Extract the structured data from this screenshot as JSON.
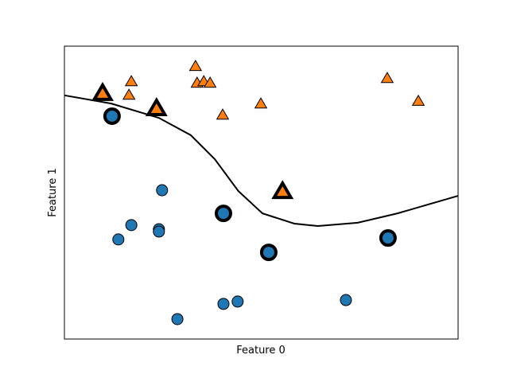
{
  "chart_data": {
    "type": "scatter",
    "xlabel": "Feature 0",
    "ylabel": "Feature 1",
    "xlim": [
      0,
      100
    ],
    "ylim": [
      0,
      100
    ],
    "series": [
      {
        "marker": "circle",
        "color": "#1f77b4",
        "support": false,
        "x": [
          24.8,
          17.0,
          13.7,
          24.0,
          24.0,
          28.7,
          40.4,
          44.0,
          71.5
        ],
        "values": [
          50.8,
          38.9,
          34.0,
          37.5,
          36.7,
          6.8,
          12.0,
          12.8,
          13.3
        ]
      },
      {
        "marker": "triangle",
        "color": "#ff7f0e",
        "support": false,
        "x": [
          33.3,
          17.0,
          33.7,
          35.4,
          37.0,
          16.4,
          40.2,
          49.9,
          82.0,
          89.9
        ],
        "values": [
          93.2,
          88.0,
          87.5,
          88.0,
          87.5,
          83.4,
          76.6,
          80.4,
          89.1,
          81.3
        ]
      },
      {
        "marker": "circle",
        "color": "#1f77b4",
        "support": true,
        "x": [
          12.1,
          40.4,
          51.9,
          82.2
        ],
        "values": [
          76.1,
          42.9,
          29.6,
          34.5
        ]
      },
      {
        "marker": "triangle",
        "color": "#ff7f0e",
        "support": true,
        "x": [
          9.7,
          23.4,
          55.4
        ],
        "values": [
          84.0,
          78.8,
          50.5
        ]
      }
    ],
    "boundary": {
      "color": "#000000",
      "x": [
        0,
        11.9,
        24.0,
        32.1,
        38.2,
        44.2,
        50.3,
        58.4,
        64.4,
        74.5,
        84.6,
        100
      ],
      "values": [
        83.2,
        80.4,
        75.5,
        69.6,
        61.4,
        50.5,
        42.9,
        39.4,
        38.6,
        39.7,
        42.9,
        48.9
      ]
    }
  }
}
